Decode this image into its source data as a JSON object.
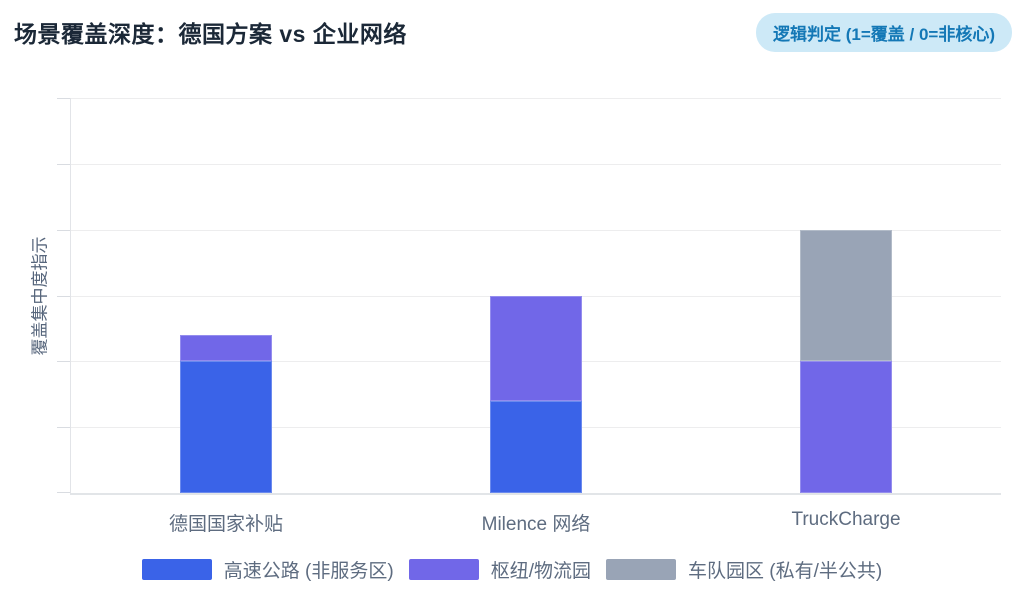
{
  "header": {
    "title": "场景覆盖深度：德国方案 vs 企业网络",
    "badge": "逻辑判定 (1=覆盖 / 0=非核心)"
  },
  "colors": {
    "title_text": "#1b2837",
    "badge_background": "#cde9f7",
    "badge_text": "#1478b6",
    "axis_text": "#5e6c80",
    "gridline": "#ededee",
    "series_blue": "#3a63e8",
    "series_purple": "#7167e8",
    "series_gray": "#99a4b6"
  },
  "chart_data": {
    "type": "bar",
    "stacked": true,
    "title": "场景覆盖深度：德国方案 vs 企业网络",
    "subtitle_badge": "逻辑判定 (1=覆盖 / 0=非核心)",
    "categories": [
      "德国国家补贴",
      "Milence 网络",
      "TruckCharge"
    ],
    "series": [
      {
        "name": "高速公路 (非服务区)",
        "color": "#3a63e8",
        "values": [
          1.0,
          0.7,
          0
        ]
      },
      {
        "name": "枢纽/物流园",
        "color": "#7167e8",
        "values": [
          0.2,
          0.8,
          1.0
        ]
      },
      {
        "name": "车队园区 (私有/半公共)",
        "color": "#99a4b6",
        "values": [
          0,
          0,
          1.0
        ]
      }
    ],
    "xlabel": "",
    "ylabel": "覆盖集中度指示",
    "ylim": [
      0,
      3
    ],
    "grid_step": 0.5,
    "grid": true,
    "y_tick_labels_visible": false,
    "legend_position": "bottom"
  }
}
